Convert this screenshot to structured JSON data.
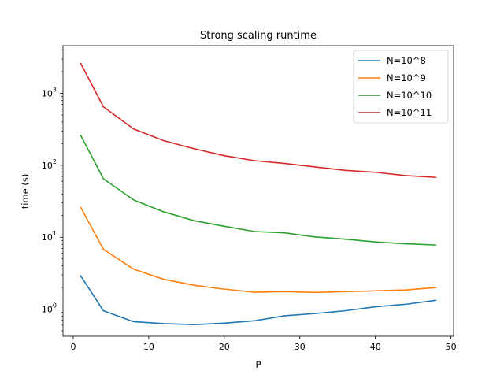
{
  "chart_data": {
    "type": "line",
    "title": "Strong scaling runtime",
    "xlabel": "P",
    "ylabel": "time (s)",
    "xlim": [
      -1.35,
      50.35
    ],
    "ylim": [
      0.42,
      4600
    ],
    "yscale": "log",
    "x_ticks": [
      0,
      10,
      20,
      30,
      40,
      50
    ],
    "y_ticks": [
      {
        "value": 1,
        "base": "10",
        "exp": "0"
      },
      {
        "value": 10,
        "base": "10",
        "exp": "1"
      },
      {
        "value": 100,
        "base": "10",
        "exp": "2"
      },
      {
        "value": 1000,
        "base": "10",
        "exp": "3"
      }
    ],
    "grid": false,
    "legend_position": "top-right",
    "x": [
      1,
      4,
      8,
      12,
      16,
      20,
      24,
      28,
      32,
      36,
      40,
      44,
      48
    ],
    "series": [
      {
        "name": "N=10^8",
        "color": "#1f77b4",
        "values": [
          2.9,
          0.95,
          0.67,
          0.63,
          0.61,
          0.64,
          0.69,
          0.81,
          0.87,
          0.95,
          1.08,
          1.17,
          1.33
        ]
      },
      {
        "name": "N=10^9",
        "color": "#ff7f0e",
        "values": [
          26,
          6.8,
          3.6,
          2.6,
          2.15,
          1.9,
          1.72,
          1.75,
          1.71,
          1.75,
          1.8,
          1.85,
          2.0
        ]
      },
      {
        "name": "N=10^10",
        "color": "#2ca02c",
        "values": [
          260,
          65,
          33,
          22.5,
          17,
          14.2,
          12,
          11.5,
          10.1,
          9.4,
          8.6,
          8.1,
          7.8
        ]
      },
      {
        "name": "N=10^11",
        "color": "#d62728",
        "values": [
          2600,
          650,
          320,
          220,
          170,
          136,
          116,
          106,
          95,
          85,
          80,
          72,
          68
        ]
      }
    ]
  }
}
